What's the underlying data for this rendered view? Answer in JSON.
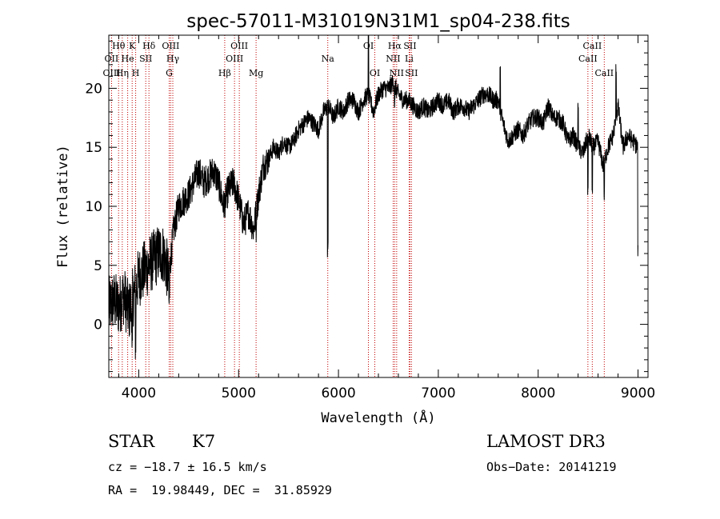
{
  "chart_data": {
    "type": "line",
    "title": "spec-57011-M31019N31M1_sp04-238.fits",
    "xlabel": "Wavelength (Å)",
    "ylabel": "Flux (relative)",
    "xlim": [
      3700,
      9100
    ],
    "ylim": [
      -4.5,
      24.5
    ],
    "xticks": [
      4000,
      5000,
      6000,
      7000,
      8000,
      9000
    ],
    "yticks": [
      0,
      5,
      10,
      15,
      20
    ],
    "xtick_labels": [
      "4000",
      "5000",
      "6000",
      "7000",
      "8000",
      "9000"
    ],
    "ytick_labels": [
      "0",
      "5",
      "10",
      "15",
      "20"
    ],
    "spectrum": {
      "wavelength": [
        3700,
        3750,
        3800,
        3850,
        3900,
        3950,
        4000,
        4050,
        4100,
        4150,
        4200,
        4250,
        4300,
        4350,
        4400,
        4450,
        4500,
        4550,
        4600,
        4650,
        4700,
        4750,
        4800,
        4850,
        4900,
        4950,
        5000,
        5050,
        5100,
        5150,
        5200,
        5250,
        5300,
        5350,
        5400,
        5450,
        5500,
        5550,
        5600,
        5650,
        5700,
        5750,
        5800,
        5850,
        5900,
        5950,
        6000,
        6050,
        6100,
        6150,
        6200,
        6250,
        6300,
        6350,
        6400,
        6450,
        6500,
        6550,
        6600,
        6650,
        6700,
        6750,
        6800,
        6850,
        6900,
        6950,
        7000,
        7050,
        7100,
        7150,
        7200,
        7250,
        7300,
        7350,
        7400,
        7450,
        7500,
        7550,
        7600,
        7650,
        7700,
        7750,
        7800,
        7850,
        7900,
        7950,
        8000,
        8050,
        8100,
        8150,
        8200,
        8250,
        8300,
        8350,
        8400,
        8450,
        8500,
        8550,
        8600,
        8650,
        8700,
        8750,
        8800,
        8850,
        8900,
        8950,
        9000
      ],
      "flux": [
        1.5,
        2.0,
        1.5,
        2.5,
        1.0,
        2.5,
        4.0,
        4.5,
        5.0,
        5.5,
        6.0,
        6.0,
        4.0,
        8.0,
        10.0,
        10.5,
        11.0,
        12.0,
        13.0,
        12.0,
        12.5,
        13.0,
        12.0,
        10.0,
        11.5,
        12.0,
        10.5,
        8.5,
        9.5,
        8.0,
        11.0,
        13.5,
        14.0,
        15.0,
        14.5,
        15.5,
        15.0,
        15.5,
        16.5,
        17.0,
        17.5,
        17.0,
        16.5,
        18.0,
        18.5,
        17.5,
        18.5,
        18.0,
        19.0,
        19.0,
        18.0,
        19.0,
        19.5,
        18.0,
        19.5,
        20.0,
        20.0,
        20.5,
        19.5,
        19.0,
        19.0,
        18.5,
        18.0,
        18.5,
        18.0,
        18.5,
        19.0,
        18.5,
        19.0,
        18.0,
        18.5,
        18.5,
        18.0,
        18.5,
        19.0,
        19.5,
        19.5,
        19.0,
        19.0,
        17.0,
        15.5,
        16.0,
        16.5,
        16.0,
        17.0,
        17.5,
        17.5,
        17.0,
        18.5,
        17.5,
        17.5,
        17.0,
        15.5,
        16.0,
        15.0,
        14.5,
        16.0,
        15.0,
        15.5,
        13.5,
        15.0,
        16.0,
        18.5,
        15.0,
        16.0,
        15.5,
        15.0
      ]
    },
    "lines": [
      {
        "label": "Hθ",
        "wavelength": 3798,
        "row": 0
      },
      {
        "label": "OII",
        "wavelength": 3727,
        "row": 1
      },
      {
        "label": "OIII",
        "wavelength": 3728,
        "row": 2
      },
      {
        "label": "He",
        "wavelength": 3889,
        "row": 1
      },
      {
        "label": "Hη",
        "wavelength": 3835,
        "row": 2
      },
      {
        "label": "K",
        "wavelength": 3934,
        "row": 0
      },
      {
        "label": "H",
        "wavelength": 3969,
        "row": 2
      },
      {
        "label": "SII",
        "wavelength": 4070,
        "row": 1
      },
      {
        "label": "Hδ",
        "wavelength": 4102,
        "row": 0
      },
      {
        "label": "OIII",
        "wavelength": 4320,
        "row": 0
      },
      {
        "label": "Hγ",
        "wavelength": 4341,
        "row": 1
      },
      {
        "label": "G",
        "wavelength": 4305,
        "row": 2
      },
      {
        "label": "Hβ",
        "wavelength": 4861,
        "row": 2
      },
      {
        "label": "OIII",
        "wavelength": 5007,
        "row": 0
      },
      {
        "label": "OIII",
        "wavelength": 4959,
        "row": 1
      },
      {
        "label": "Mg",
        "wavelength": 5175,
        "row": 2
      },
      {
        "label": "Na",
        "wavelength": 5893,
        "row": 1
      },
      {
        "label": "OI",
        "wavelength": 6300,
        "row": 0
      },
      {
        "label": "OI",
        "wavelength": 6364,
        "row": 2
      },
      {
        "label": "Hα",
        "wavelength": 6563,
        "row": 0
      },
      {
        "label": "NII",
        "wavelength": 6548,
        "row": 1
      },
      {
        "label": "NII",
        "wavelength": 6583,
        "row": 2
      },
      {
        "label": "SII",
        "wavelength": 6716,
        "row": 0
      },
      {
        "label": "Li",
        "wavelength": 6708,
        "row": 1
      },
      {
        "label": "SII",
        "wavelength": 6731,
        "row": 2
      },
      {
        "label": "CaII",
        "wavelength": 8542,
        "row": 0
      },
      {
        "label": "CaII",
        "wavelength": 8498,
        "row": 1
      },
      {
        "label": "CaII",
        "wavelength": 8662,
        "row": 2
      }
    ]
  },
  "info": {
    "class": "STAR",
    "subclass": "K7",
    "survey": "LAMOST DR3",
    "cz": "cz = −18.7 ± 16.5 km/s",
    "obs_date": "Obs−Date: 20141219",
    "coords": "RA =  19.98449, DEC =  31.85929"
  },
  "colors": {
    "spectrum": "#000000",
    "line_marker": "#c00000",
    "axes": "#000000"
  }
}
